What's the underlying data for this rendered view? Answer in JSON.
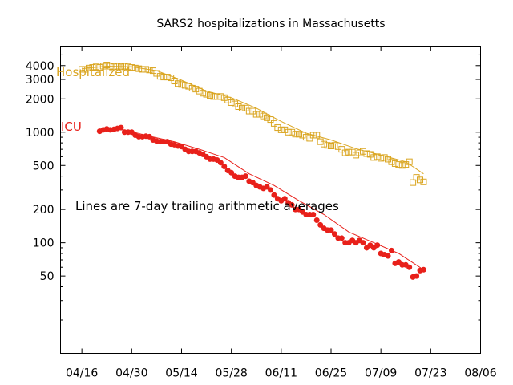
{
  "chart_data": {
    "type": "scatter",
    "title": "SARS2 hospitalizations in Massachusetts",
    "yscale": "log",
    "ylim": [
      10,
      6000
    ],
    "xlim": [
      "2020-04-10",
      "2020-08-06"
    ],
    "x_ticks": [
      "04/16",
      "04/30",
      "05/14",
      "05/28",
      "06/11",
      "06/25",
      "07/09",
      "07/23",
      "08/06"
    ],
    "x_tick_dates": [
      "2020-04-16",
      "2020-04-30",
      "2020-05-14",
      "2020-05-28",
      "2020-06-11",
      "2020-06-25",
      "2020-07-09",
      "2020-07-23",
      "2020-08-06"
    ],
    "y_ticks": [
      4000,
      3000,
      2000,
      1000,
      500,
      200,
      100,
      50
    ],
    "y_tick_labels": [
      "4000",
      "3000",
      "2000",
      "1000",
      "500",
      "200",
      "100",
      "50"
    ],
    "annotation": "Lines are 7-day trailing arithmetic averages",
    "series": [
      {
        "name": "Hospitalized",
        "color": "#daa520",
        "marker": "open-square",
        "points": [
          [
            "2020-04-16",
            3700
          ],
          [
            "2020-04-17",
            3700
          ],
          [
            "2020-04-18",
            3800
          ],
          [
            "2020-04-19",
            3850
          ],
          [
            "2020-04-20",
            3900
          ],
          [
            "2020-04-21",
            3850
          ],
          [
            "2020-04-22",
            3950
          ],
          [
            "2020-04-23",
            4050
          ],
          [
            "2020-04-24",
            3950
          ],
          [
            "2020-04-25",
            3900
          ],
          [
            "2020-04-26",
            3950
          ],
          [
            "2020-04-27",
            3900
          ],
          [
            "2020-04-28",
            3950
          ],
          [
            "2020-04-29",
            3900
          ],
          [
            "2020-04-30",
            3850
          ],
          [
            "2020-05-01",
            3800
          ],
          [
            "2020-05-02",
            3750
          ],
          [
            "2020-05-03",
            3700
          ],
          [
            "2020-05-04",
            3700
          ],
          [
            "2020-05-05",
            3650
          ],
          [
            "2020-05-06",
            3600
          ],
          [
            "2020-05-07",
            3400
          ],
          [
            "2020-05-08",
            3200
          ],
          [
            "2020-05-09",
            3150
          ],
          [
            "2020-05-10",
            3150
          ],
          [
            "2020-05-11",
            3100
          ],
          [
            "2020-05-12",
            2900
          ],
          [
            "2020-05-13",
            2750
          ],
          [
            "2020-05-14",
            2700
          ],
          [
            "2020-05-15",
            2650
          ],
          [
            "2020-05-16",
            2600
          ],
          [
            "2020-05-17",
            2500
          ],
          [
            "2020-05-18",
            2450
          ],
          [
            "2020-05-19",
            2350
          ],
          [
            "2020-05-20",
            2250
          ],
          [
            "2020-05-21",
            2200
          ],
          [
            "2020-05-22",
            2150
          ],
          [
            "2020-05-23",
            2100
          ],
          [
            "2020-05-24",
            2100
          ],
          [
            "2020-05-25",
            2100
          ],
          [
            "2020-05-26",
            2050
          ],
          [
            "2020-05-27",
            1950
          ],
          [
            "2020-05-28",
            1850
          ],
          [
            "2020-05-29",
            1800
          ],
          [
            "2020-05-30",
            1700
          ],
          [
            "2020-05-31",
            1650
          ],
          [
            "2020-06-01",
            1650
          ],
          [
            "2020-06-02",
            1550
          ],
          [
            "2020-06-03",
            1550
          ],
          [
            "2020-06-04",
            1450
          ],
          [
            "2020-06-05",
            1450
          ],
          [
            "2020-06-06",
            1400
          ],
          [
            "2020-06-07",
            1350
          ],
          [
            "2020-06-08",
            1300
          ],
          [
            "2020-06-09",
            1200
          ],
          [
            "2020-06-10",
            1100
          ],
          [
            "2020-06-11",
            1050
          ],
          [
            "2020-06-12",
            1050
          ],
          [
            "2020-06-13",
            1000
          ],
          [
            "2020-06-14",
            1000
          ],
          [
            "2020-06-15",
            960
          ],
          [
            "2020-06-16",
            960
          ],
          [
            "2020-06-17",
            940
          ],
          [
            "2020-06-18",
            900
          ],
          [
            "2020-06-19",
            880
          ],
          [
            "2020-06-20",
            940
          ],
          [
            "2020-06-21",
            940
          ],
          [
            "2020-06-22",
            820
          ],
          [
            "2020-06-23",
            780
          ],
          [
            "2020-06-24",
            760
          ],
          [
            "2020-06-25",
            750
          ],
          [
            "2020-06-26",
            760
          ],
          [
            "2020-06-27",
            740
          ],
          [
            "2020-06-28",
            700
          ],
          [
            "2020-06-29",
            650
          ],
          [
            "2020-06-30",
            660
          ],
          [
            "2020-07-01",
            660
          ],
          [
            "2020-07-02",
            620
          ],
          [
            "2020-07-03",
            650
          ],
          [
            "2020-07-04",
            670
          ],
          [
            "2020-07-05",
            640
          ],
          [
            "2020-07-06",
            630
          ],
          [
            "2020-07-07",
            590
          ],
          [
            "2020-07-08",
            600
          ],
          [
            "2020-07-09",
            580
          ],
          [
            "2020-07-10",
            590
          ],
          [
            "2020-07-11",
            570
          ],
          [
            "2020-07-12",
            540
          ],
          [
            "2020-07-13",
            520
          ],
          [
            "2020-07-14",
            510
          ],
          [
            "2020-07-15",
            500
          ],
          [
            "2020-07-16",
            510
          ],
          [
            "2020-07-17",
            540
          ],
          [
            "2020-07-18",
            350
          ],
          [
            "2020-07-19",
            390
          ],
          [
            "2020-07-20",
            370
          ],
          [
            "2020-07-21",
            355
          ]
        ],
        "avg_line": [
          [
            "2020-04-16",
            3750
          ],
          [
            "2020-04-23",
            3950
          ],
          [
            "2020-04-30",
            3900
          ],
          [
            "2020-05-07",
            3600
          ],
          [
            "2020-05-14",
            2950
          ],
          [
            "2020-05-21",
            2350
          ],
          [
            "2020-05-28",
            2050
          ],
          [
            "2020-06-04",
            1650
          ],
          [
            "2020-06-11",
            1250
          ],
          [
            "2020-06-18",
            980
          ],
          [
            "2020-06-25",
            850
          ],
          [
            "2020-07-02",
            710
          ],
          [
            "2020-07-09",
            620
          ],
          [
            "2020-07-16",
            540
          ],
          [
            "2020-07-21",
            420
          ]
        ]
      },
      {
        "name": "ICU",
        "color": "#e8201a",
        "marker": "filled-circle",
        "points": [
          [
            "2020-04-21",
            1020
          ],
          [
            "2020-04-22",
            1050
          ],
          [
            "2020-04-23",
            1070
          ],
          [
            "2020-04-24",
            1050
          ],
          [
            "2020-04-25",
            1060
          ],
          [
            "2020-04-26",
            1080
          ],
          [
            "2020-04-27",
            1100
          ],
          [
            "2020-04-28",
            1000
          ],
          [
            "2020-04-29",
            1000
          ],
          [
            "2020-04-30",
            1000
          ],
          [
            "2020-05-01",
            940
          ],
          [
            "2020-05-02",
            910
          ],
          [
            "2020-05-03",
            910
          ],
          [
            "2020-05-04",
            920
          ],
          [
            "2020-05-05",
            910
          ],
          [
            "2020-05-06",
            850
          ],
          [
            "2020-05-07",
            830
          ],
          [
            "2020-05-08",
            820
          ],
          [
            "2020-05-09",
            820
          ],
          [
            "2020-05-10",
            820
          ],
          [
            "2020-05-11",
            780
          ],
          [
            "2020-05-12",
            770
          ],
          [
            "2020-05-13",
            750
          ],
          [
            "2020-05-14",
            740
          ],
          [
            "2020-05-15",
            700
          ],
          [
            "2020-05-16",
            670
          ],
          [
            "2020-05-17",
            670
          ],
          [
            "2020-05-18",
            670
          ],
          [
            "2020-05-19",
            650
          ],
          [
            "2020-05-20",
            630
          ],
          [
            "2020-05-21",
            600
          ],
          [
            "2020-05-22",
            570
          ],
          [
            "2020-05-23",
            570
          ],
          [
            "2020-05-24",
            560
          ],
          [
            "2020-05-25",
            530
          ],
          [
            "2020-05-26",
            490
          ],
          [
            "2020-05-27",
            450
          ],
          [
            "2020-05-28",
            430
          ],
          [
            "2020-05-29",
            400
          ],
          [
            "2020-05-30",
            390
          ],
          [
            "2020-05-31",
            390
          ],
          [
            "2020-06-01",
            400
          ],
          [
            "2020-06-02",
            360
          ],
          [
            "2020-06-03",
            350
          ],
          [
            "2020-06-04",
            330
          ],
          [
            "2020-06-05",
            320
          ],
          [
            "2020-06-06",
            310
          ],
          [
            "2020-06-07",
            320
          ],
          [
            "2020-06-08",
            300
          ],
          [
            "2020-06-09",
            270
          ],
          [
            "2020-06-10",
            250
          ],
          [
            "2020-06-11",
            240
          ],
          [
            "2020-06-12",
            250
          ],
          [
            "2020-06-13",
            230
          ],
          [
            "2020-06-14",
            220
          ],
          [
            "2020-06-15",
            200
          ],
          [
            "2020-06-16",
            200
          ],
          [
            "2020-06-17",
            190
          ],
          [
            "2020-06-18",
            180
          ],
          [
            "2020-06-19",
            180
          ],
          [
            "2020-06-20",
            180
          ],
          [
            "2020-06-21",
            160
          ],
          [
            "2020-06-22",
            145
          ],
          [
            "2020-06-23",
            135
          ],
          [
            "2020-06-24",
            130
          ],
          [
            "2020-06-25",
            130
          ],
          [
            "2020-06-26",
            120
          ],
          [
            "2020-06-27",
            110
          ],
          [
            "2020-06-28",
            110
          ],
          [
            "2020-06-29",
            100
          ],
          [
            "2020-06-30",
            100
          ],
          [
            "2020-07-01",
            105
          ],
          [
            "2020-07-02",
            100
          ],
          [
            "2020-07-03",
            105
          ],
          [
            "2020-07-04",
            100
          ],
          [
            "2020-07-05",
            90
          ],
          [
            "2020-07-06",
            95
          ],
          [
            "2020-07-07",
            90
          ],
          [
            "2020-07-08",
            95
          ],
          [
            "2020-07-09",
            80
          ],
          [
            "2020-07-10",
            78
          ],
          [
            "2020-07-11",
            76
          ],
          [
            "2020-07-12",
            85
          ],
          [
            "2020-07-13",
            65
          ],
          [
            "2020-07-14",
            67
          ],
          [
            "2020-07-15",
            63
          ],
          [
            "2020-07-16",
            63
          ],
          [
            "2020-07-17",
            60
          ],
          [
            "2020-07-18",
            49
          ],
          [
            "2020-07-19",
            50
          ],
          [
            "2020-07-20",
            56
          ],
          [
            "2020-07-21",
            57
          ]
        ],
        "avg_line": [
          [
            "2020-04-21",
            1050
          ],
          [
            "2020-04-28",
            1050
          ],
          [
            "2020-05-05",
            920
          ],
          [
            "2020-05-12",
            820
          ],
          [
            "2020-05-19",
            700
          ],
          [
            "2020-05-26",
            590
          ],
          [
            "2020-06-02",
            420
          ],
          [
            "2020-06-09",
            330
          ],
          [
            "2020-06-16",
            240
          ],
          [
            "2020-06-23",
            180
          ],
          [
            "2020-06-30",
            125
          ],
          [
            "2020-07-07",
            100
          ],
          [
            "2020-07-14",
            80
          ],
          [
            "2020-07-21",
            57
          ]
        ]
      }
    ]
  }
}
